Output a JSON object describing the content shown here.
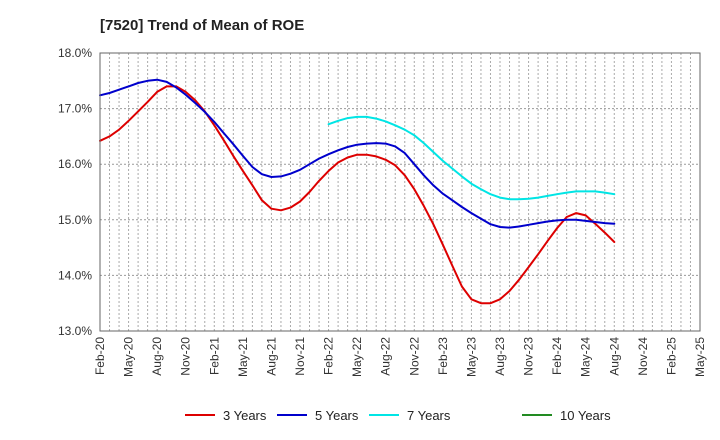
{
  "chart_data": {
    "type": "line",
    "title": "[7520]  Trend of Mean of ROE",
    "xlabel": "",
    "ylabel": "",
    "ylim": [
      13.0,
      18.0
    ],
    "y_ticks": [
      "13.0%",
      "14.0%",
      "15.0%",
      "16.0%",
      "17.0%",
      "18.0%"
    ],
    "y_tick_values": [
      13.0,
      14.0,
      15.0,
      16.0,
      17.0,
      18.0
    ],
    "x_ticks": [
      "Feb-20",
      "May-20",
      "Aug-20",
      "Nov-20",
      "Feb-21",
      "May-21",
      "Aug-21",
      "Nov-21",
      "Feb-22",
      "May-22",
      "Aug-22",
      "Nov-22",
      "Feb-23",
      "May-23",
      "Aug-23",
      "Nov-23",
      "Feb-24",
      "May-24",
      "Aug-24",
      "Nov-24",
      "Feb-25",
      "May-25"
    ],
    "legend_position": "bottom",
    "grid": true,
    "series": [
      {
        "name": "3 Years",
        "color": "#dd0000",
        "start_index": 0,
        "values": [
          16.42,
          16.5,
          16.62,
          16.78,
          16.95,
          17.12,
          17.3,
          17.4,
          17.4,
          17.3,
          17.15,
          16.95,
          16.7,
          16.43,
          16.15,
          15.88,
          15.62,
          15.35,
          15.2,
          15.17,
          15.22,
          15.33,
          15.5,
          15.7,
          15.88,
          16.03,
          16.12,
          16.17,
          16.17,
          16.14,
          16.08,
          15.98,
          15.8,
          15.55,
          15.25,
          14.92,
          14.55,
          14.17,
          13.8,
          13.57,
          13.5,
          13.5,
          13.57,
          13.72,
          13.92,
          14.15,
          14.38,
          14.62,
          14.85,
          15.05,
          15.12,
          15.08,
          14.93,
          14.77,
          14.6
        ]
      },
      {
        "name": "5 Years",
        "color": "#0000cc",
        "start_index": 0,
        "values": [
          17.24,
          17.28,
          17.34,
          17.4,
          17.46,
          17.5,
          17.52,
          17.48,
          17.38,
          17.25,
          17.1,
          16.94,
          16.76,
          16.56,
          16.36,
          16.15,
          15.95,
          15.82,
          15.77,
          15.78,
          15.83,
          15.9,
          16.0,
          16.1,
          16.18,
          16.25,
          16.31,
          16.35,
          16.37,
          16.38,
          16.37,
          16.32,
          16.2,
          16.0,
          15.8,
          15.62,
          15.47,
          15.35,
          15.23,
          15.12,
          15.02,
          14.92,
          14.87,
          14.86,
          14.88,
          14.91,
          14.94,
          14.97,
          14.99,
          15.0,
          15.0,
          14.98,
          14.96,
          14.94,
          14.93
        ]
      },
      {
        "name": "7 Years",
        "color": "#00e5e5",
        "start_index": 24,
        "values": [
          16.72,
          16.78,
          16.83,
          16.85,
          16.85,
          16.82,
          16.77,
          16.7,
          16.62,
          16.52,
          16.38,
          16.22,
          16.06,
          15.92,
          15.78,
          15.65,
          15.55,
          15.46,
          15.4,
          15.37,
          15.37,
          15.38,
          15.4,
          15.43,
          15.46,
          15.49,
          15.51,
          15.51,
          15.51,
          15.49,
          15.46
        ]
      },
      {
        "name": "10 Years",
        "color": "#228b22",
        "start_index": 0,
        "values": []
      }
    ]
  }
}
